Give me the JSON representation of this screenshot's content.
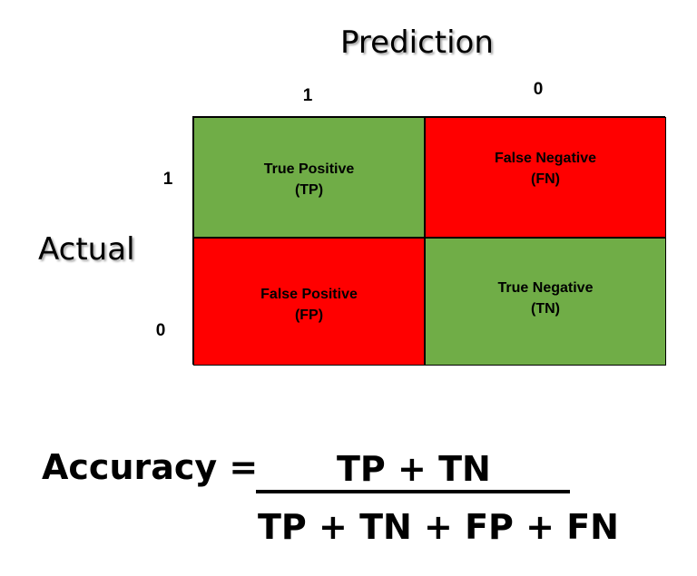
{
  "header": {
    "prediction_label": "Prediction",
    "actual_label": "Actual"
  },
  "columns": [
    "1",
    "0"
  ],
  "rows": [
    "1",
    "0"
  ],
  "matrix": {
    "tp": {
      "line1": "True Positive",
      "line2": "(TP)"
    },
    "fn": {
      "line1": "False Negative",
      "line2": "(FN)"
    },
    "fp": {
      "line1": "False Positive",
      "line2": "(FP)"
    },
    "tn": {
      "line1": "True Negative",
      "line2": "(TN)"
    }
  },
  "colors": {
    "correct": "#70AD47",
    "incorrect": "#FF0000"
  },
  "formula": {
    "label": "Accuracy =",
    "numerator": "TP + TN",
    "denominator": "TP + TN + FP + FN"
  }
}
